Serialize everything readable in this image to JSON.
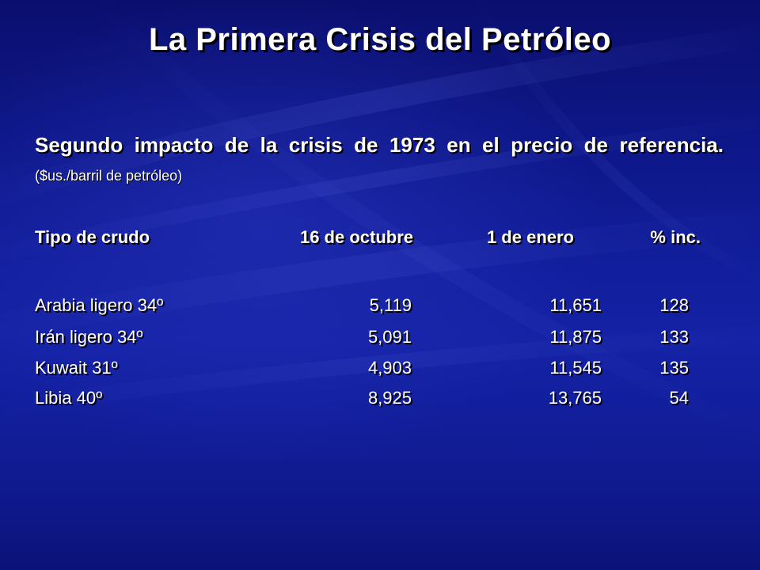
{
  "slide": {
    "title": "La Primera Crisis del Petróleo",
    "subtitle_main": "Segundo impacto de la crisis de 1973 en el precio de referencia.",
    "subtitle_unit": "($us./barril de petróleo)",
    "background_color": "#0f1a92"
  },
  "table": {
    "headers": [
      "Tipo de crudo",
      "16 de octubre",
      "1 de enero",
      "% inc."
    ],
    "rows": [
      [
        "Arabia ligero 34º",
        "5,119",
        "11,651",
        "128"
      ],
      [
        "Irán ligero 34º",
        "5,091",
        "11,875",
        "133"
      ],
      [
        "Kuwait 31º",
        "4,903",
        "11,545",
        "135"
      ],
      [
        "Libia 40º",
        "8,925",
        "13,765",
        "54"
      ]
    ]
  }
}
